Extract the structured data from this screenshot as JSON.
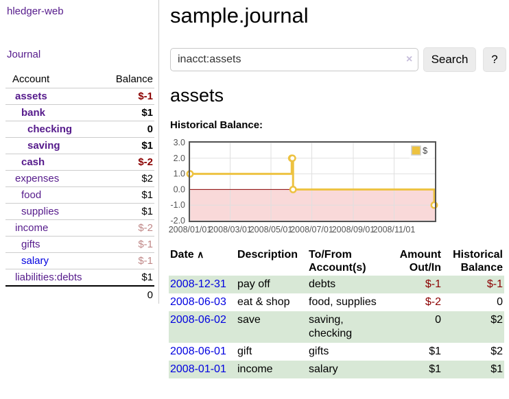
{
  "sidebar": {
    "brand": "hledger-web",
    "nav": {
      "journal_label": "Journal"
    },
    "accounts_table": {
      "headers": {
        "account": "Account",
        "balance": "Balance"
      },
      "rows": [
        {
          "name": "assets",
          "depth": 1,
          "balance": "$-1",
          "bold": true,
          "negative": true,
          "dim": false,
          "unvisited": false
        },
        {
          "name": "bank",
          "depth": 2,
          "balance": "$1",
          "bold": true,
          "negative": false,
          "dim": false,
          "unvisited": false
        },
        {
          "name": "checking",
          "depth": 3,
          "balance": "0",
          "bold": true,
          "negative": false,
          "dim": false,
          "unvisited": false
        },
        {
          "name": "saving",
          "depth": 3,
          "balance": "$1",
          "bold": true,
          "negative": false,
          "dim": false,
          "unvisited": false
        },
        {
          "name": "cash",
          "depth": 2,
          "balance": "$-2",
          "bold": true,
          "negative": true,
          "dim": false,
          "unvisited": false
        },
        {
          "name": "expenses",
          "depth": 1,
          "balance": "$2",
          "bold": false,
          "negative": false,
          "dim": false,
          "unvisited": false
        },
        {
          "name": "food",
          "depth": 2,
          "balance": "$1",
          "bold": false,
          "negative": false,
          "dim": false,
          "unvisited": false
        },
        {
          "name": "supplies",
          "depth": 2,
          "balance": "$1",
          "bold": false,
          "negative": false,
          "dim": false,
          "unvisited": false
        },
        {
          "name": "income",
          "depth": 1,
          "balance": "$-2",
          "bold": false,
          "negative": true,
          "dim": true,
          "unvisited": false
        },
        {
          "name": "gifts",
          "depth": 2,
          "balance": "$-1",
          "bold": false,
          "negative": true,
          "dim": true,
          "unvisited": false
        },
        {
          "name": "salary",
          "depth": 2,
          "balance": "$-1",
          "bold": false,
          "negative": true,
          "dim": true,
          "unvisited": true
        },
        {
          "name": "liabilities:debts",
          "depth": 1,
          "balance": "$1",
          "bold": false,
          "negative": false,
          "dim": false,
          "unvisited": false
        }
      ],
      "total": "0"
    }
  },
  "header": {
    "title": "sample.journal"
  },
  "search": {
    "value": "inacct:assets",
    "clear_icon": "×",
    "button_label": "Search",
    "help_label": "?"
  },
  "account_page": {
    "heading": "assets",
    "chart_label": "Historical Balance:"
  },
  "chart_data": {
    "type": "line",
    "step": true,
    "title": "Historical Balance",
    "ylim": [
      -2,
      3
    ],
    "x_range": [
      "2008-01-01",
      "2009-01-01"
    ],
    "y_ticks": [
      "3.0",
      "2.0",
      "1.0",
      "0.0",
      "-1.0",
      "-2.0"
    ],
    "y_tick_values": [
      3,
      2,
      1,
      0,
      -1,
      -2
    ],
    "x_ticks": [
      {
        "date": "2008-01-01",
        "label": "2008/01/01"
      },
      {
        "date": "2008-03-01",
        "label": "2008/03/01"
      },
      {
        "date": "2008-05-01",
        "label": "2008/05/01"
      },
      {
        "date": "2008-07-01",
        "label": "2008/07/01"
      },
      {
        "date": "2008-09-01",
        "label": "2008/09/01"
      },
      {
        "date": "2008-11-01",
        "label": "2008/11/01"
      }
    ],
    "series": [
      {
        "name": "$",
        "color": "#edc240",
        "points": [
          {
            "date": "2008-01-01",
            "value": 1
          },
          {
            "date": "2008-06-01",
            "value": 2
          },
          {
            "date": "2008-06-02",
            "value": 2
          },
          {
            "date": "2008-06-03",
            "value": 0
          },
          {
            "date": "2008-12-31",
            "value": -1
          }
        ]
      }
    ],
    "legend": {
      "label": "$",
      "swatch_color": "#edc240",
      "position": "top-right"
    },
    "colors": {
      "zero_line": "#8b0000",
      "negative_region": "#f9d9d9",
      "grid": "#e0e0e0",
      "border": "#545454",
      "tick_text": "#545454"
    },
    "grid": true
  },
  "register": {
    "columns": [
      {
        "label": "Date",
        "align": "left",
        "sorted": true
      },
      {
        "label": "Description",
        "align": "left",
        "sorted": false
      },
      {
        "label": "To/From Account(s)",
        "align": "left",
        "sorted": false
      },
      {
        "label": "Amount Out/In",
        "align": "right",
        "sorted": false
      },
      {
        "label": "Historical Balance",
        "align": "right",
        "sorted": false
      }
    ],
    "sort_icon": "∧",
    "rows": [
      {
        "date": "2008-12-31",
        "description": "pay off",
        "accounts": "debts",
        "amount": "$-1",
        "balance": "$-1"
      },
      {
        "date": "2008-06-03",
        "description": "eat & shop",
        "accounts": "food, supplies",
        "amount": "$-2",
        "balance": "0"
      },
      {
        "date": "2008-06-02",
        "description": "save",
        "accounts": "saving, checking",
        "amount": "0",
        "balance": "$2"
      },
      {
        "date": "2008-06-01",
        "description": "gift",
        "accounts": "gifts",
        "amount": "$1",
        "balance": "$2"
      },
      {
        "date": "2008-01-01",
        "description": "income",
        "accounts": "salary",
        "amount": "$1",
        "balance": "$1"
      }
    ],
    "colors": {
      "negative": "#8b0000",
      "date_link": "#0000e0",
      "stripe": "#d8e8d6"
    }
  }
}
